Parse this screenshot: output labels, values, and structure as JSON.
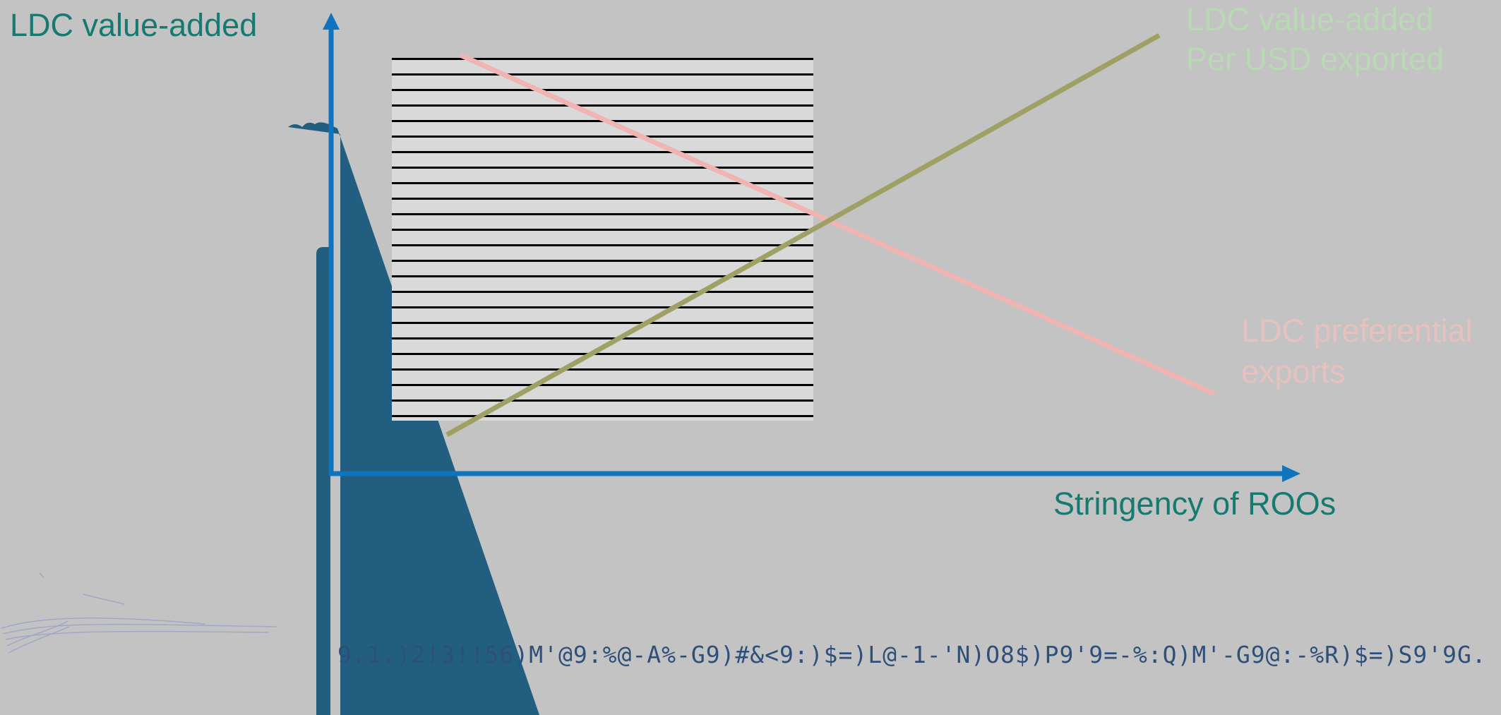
{
  "diagram": {
    "y_axis_title": "LDC value-added",
    "x_axis_title": "Stringency of ROOs",
    "series_labels": {
      "value_added": [
        "LDC value-added",
        "Per USD exported"
      ],
      "preferential_exports": [
        "LDC preferential",
        "exports"
      ]
    },
    "footer_text": "9.1.)2!3!!56)M'@9:%@-A%-G9)#&<9:)$=)L@-1-'N)O8$)P9'9=-%:Q)M'-G9@:-%R)$=)S9'9G.",
    "colors": {
      "background": "#c3c3c3",
      "axis": "#0f73bd",
      "title_text": "#147a72",
      "value_added_line": "#a1a064",
      "preferential_exports_line": "#f0b4b2",
      "dark_shape": "#215e7f"
    }
  }
}
